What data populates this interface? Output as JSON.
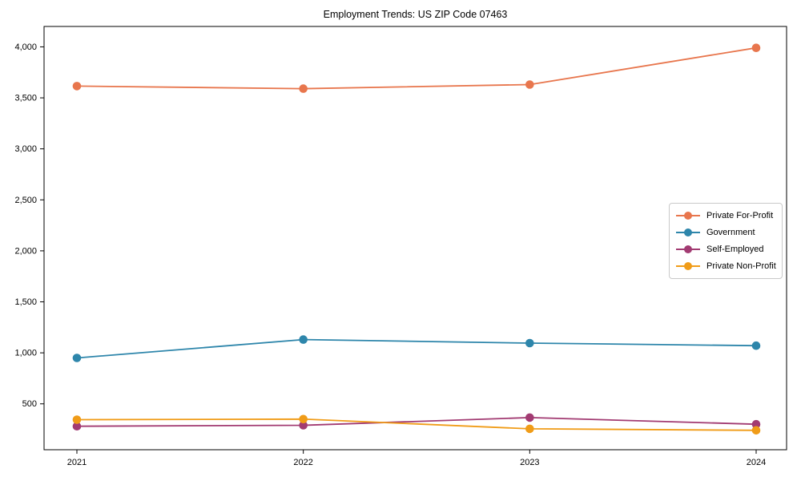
{
  "chart_data": {
    "type": "line",
    "title": "Employment Trends: US ZIP Code 07463",
    "categories": [
      "2021",
      "2022",
      "2023",
      "2024"
    ],
    "series": [
      {
        "name": "Private For-Profit",
        "color": "#E8764D",
        "values": [
          3615,
          3590,
          3630,
          3990
        ]
      },
      {
        "name": "Government",
        "color": "#2E86AB",
        "values": [
          950,
          1130,
          1095,
          1070
        ]
      },
      {
        "name": "Self-Employed",
        "color": "#A23B72",
        "values": [
          280,
          290,
          365,
          300
        ]
      },
      {
        "name": "Private Non-Profit",
        "color": "#F09C18",
        "values": [
          345,
          350,
          255,
          240
        ]
      }
    ],
    "xlabel": "",
    "ylabel": "",
    "ylim": [
      50,
      4200
    ],
    "yticks": [
      500,
      1000,
      1500,
      2000,
      2500,
      3000,
      3500,
      4000
    ],
    "ytick_labels": [
      "500",
      "1,000",
      "1,500",
      "2,000",
      "2,500",
      "3,000",
      "3,500",
      "4,000"
    ],
    "grid": false,
    "legend_position": "center-right",
    "marker": "circle"
  }
}
